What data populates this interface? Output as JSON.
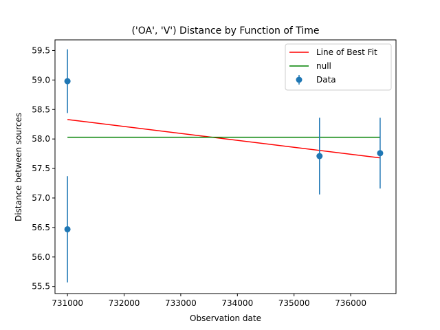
{
  "chart_data": {
    "type": "scatter",
    "title": "('OA', 'V') Distance by Function of Time",
    "xlabel": "Observation date",
    "ylabel": "Distance between sources",
    "xlim": [
      730780,
      736800
    ],
    "ylim": [
      55.38,
      59.68
    ],
    "xticks": [
      731000,
      732000,
      733000,
      734000,
      735000,
      736000
    ],
    "yticks": [
      55.5,
      56.0,
      56.5,
      57.0,
      57.5,
      58.0,
      58.5,
      59.0,
      59.5
    ],
    "xtick_labels": [
      "731000",
      "732000",
      "733000",
      "734000",
      "735000",
      "736000"
    ],
    "ytick_labels": [
      "55.5",
      "56.0",
      "56.5",
      "57.0",
      "57.5",
      "58.0",
      "58.5",
      "59.0",
      "59.5"
    ],
    "grid": false,
    "legend_position": "top-right",
    "series": [
      {
        "name": "Line of Best Fit",
        "kind": "line",
        "color": "#ff0000",
        "x": [
          731000,
          736520
        ],
        "y": [
          58.33,
          57.68
        ]
      },
      {
        "name": "null",
        "kind": "line",
        "color": "#008000",
        "x": [
          731000,
          736520
        ],
        "y": [
          58.03,
          58.03
        ]
      },
      {
        "name": "Data",
        "kind": "errorbar",
        "color": "#1f77b4",
        "x": [
          731000,
          731000,
          735450,
          736520
        ],
        "y": [
          58.98,
          56.47,
          57.71,
          57.76
        ],
        "yerr": [
          0.54,
          0.9,
          0.65,
          0.6
        ]
      }
    ],
    "legend": [
      "Line of Best Fit",
      "null",
      "Data"
    ]
  }
}
